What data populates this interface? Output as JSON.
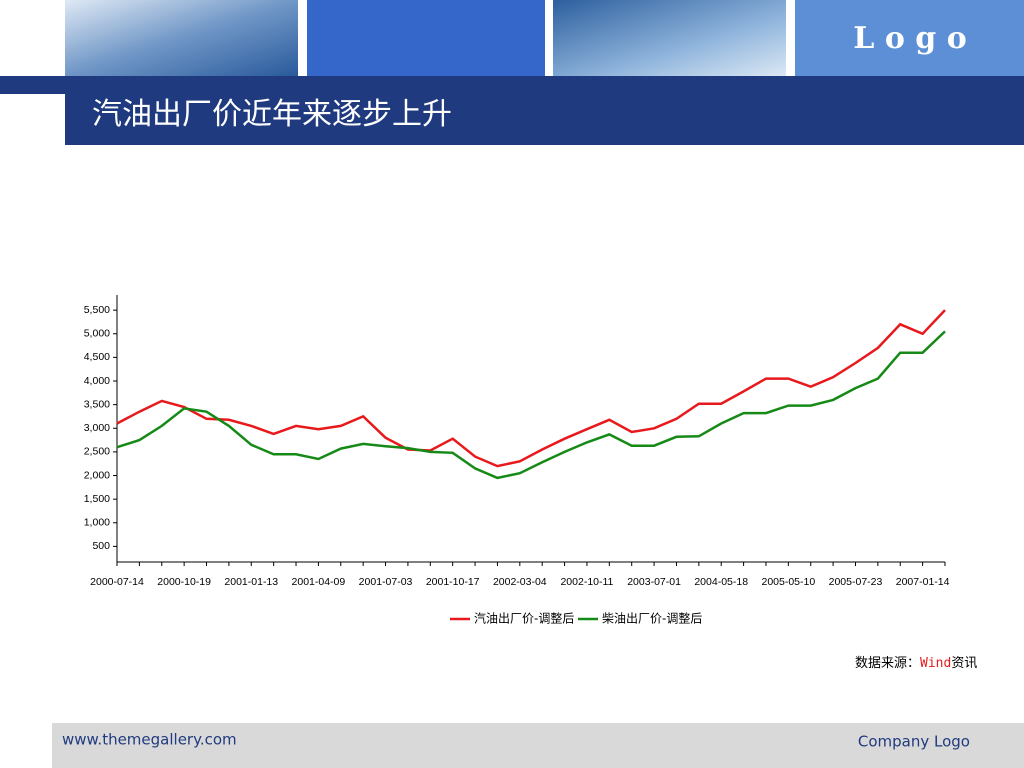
{
  "header": {
    "logo": "L o g o",
    "title": "汽油出厂价近年来逐步上升"
  },
  "chart_data": {
    "type": "line",
    "categories": [
      "2000-07-14",
      null,
      null,
      "2000-10-19",
      null,
      null,
      "2001-01-13",
      null,
      null,
      "2001-04-09",
      null,
      null,
      "2001-07-03",
      null,
      null,
      "2001-10-17",
      null,
      null,
      "2002-03-04",
      null,
      null,
      "2002-10-11",
      null,
      null,
      "2003-07-01",
      null,
      null,
      "2004-05-18",
      null,
      null,
      "2005-05-10",
      null,
      null,
      "2005-07-23",
      null,
      null,
      "2007-01-14",
      null
    ],
    "series": [
      {
        "name": "汽油出厂价-调整后",
        "color": "#e8191c",
        "values": [
          3100,
          3350,
          3580,
          3450,
          3200,
          3180,
          3050,
          2880,
          3050,
          2980,
          3050,
          3250,
          2800,
          2550,
          2530,
          2780,
          2400,
          2200,
          2300,
          2550,
          2780,
          2980,
          3180,
          2920,
          3000,
          3200,
          3520,
          3520,
          3780,
          4050,
          4050,
          3880,
          4080,
          4380,
          4700,
          5200,
          5000,
          5500
        ]
      },
      {
        "name": "柴油出厂价-调整后",
        "color": "#168a16",
        "values": [
          2600,
          2750,
          3050,
          3420,
          3350,
          3050,
          2650,
          2450,
          2450,
          2350,
          2570,
          2670,
          2620,
          2580,
          2500,
          2480,
          2150,
          1950,
          2050,
          2280,
          2500,
          2700,
          2870,
          2630,
          2630,
          2820,
          2830,
          3100,
          3320,
          3320,
          3480,
          3480,
          3600,
          3850,
          4050,
          4600,
          4600,
          5050
        ]
      }
    ],
    "ylim": [
      170,
      5820
    ],
    "yticks": [
      500,
      {
        "value": 1000,
        "label": "1,000"
      },
      {
        "value": 1500,
        "label": "1,500"
      },
      {
        "value": 2000,
        "label": "2,000"
      },
      {
        "value": 2500,
        "label": "2,500"
      },
      {
        "value": 3000,
        "label": "3,000"
      },
      {
        "value": 3500,
        "label": "3,500"
      },
      {
        "value": 4000,
        "label": "4,000"
      },
      {
        "value": 4500,
        "label": "4,500"
      },
      {
        "value": 5000,
        "label": "5,000"
      },
      {
        "value": 5500,
        "label": "5,500"
      }
    ],
    "legend": "bottom",
    "source": {
      "prefix": "数据来源：",
      "highlight": "Wind",
      "suffix": "资讯"
    }
  },
  "footer": {
    "left": "www.themegallery.com",
    "right": "Company Logo"
  }
}
